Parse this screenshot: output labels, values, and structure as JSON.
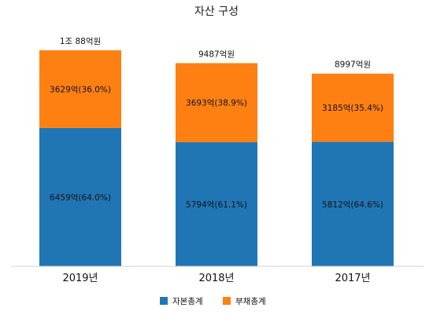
{
  "chart_data": {
    "type": "bar",
    "stacked": true,
    "title": "자산 구성",
    "categories": [
      "2019년",
      "2018년",
      "2017년"
    ],
    "totals": [
      10088,
      9487,
      8997
    ],
    "total_labels": [
      "1조 88억원",
      "9487억원",
      "8997억원"
    ],
    "series": [
      {
        "name": "자본총계",
        "color": "#2076B4",
        "values": [
          6459,
          5794,
          5812
        ],
        "labels": [
          "6459억(64.0%)",
          "5794억(61.1%)",
          "5812억(64.6%)"
        ]
      },
      {
        "name": "부채총계",
        "color": "#FF8012",
        "values": [
          3629,
          3693,
          3185
        ],
        "labels": [
          "3629억(36.0%)",
          "3693억(38.9%)",
          "3185억(35.4%)"
        ]
      }
    ],
    "ylim": [
      0,
      10088
    ],
    "grid": false,
    "legend_position": "bottom"
  }
}
